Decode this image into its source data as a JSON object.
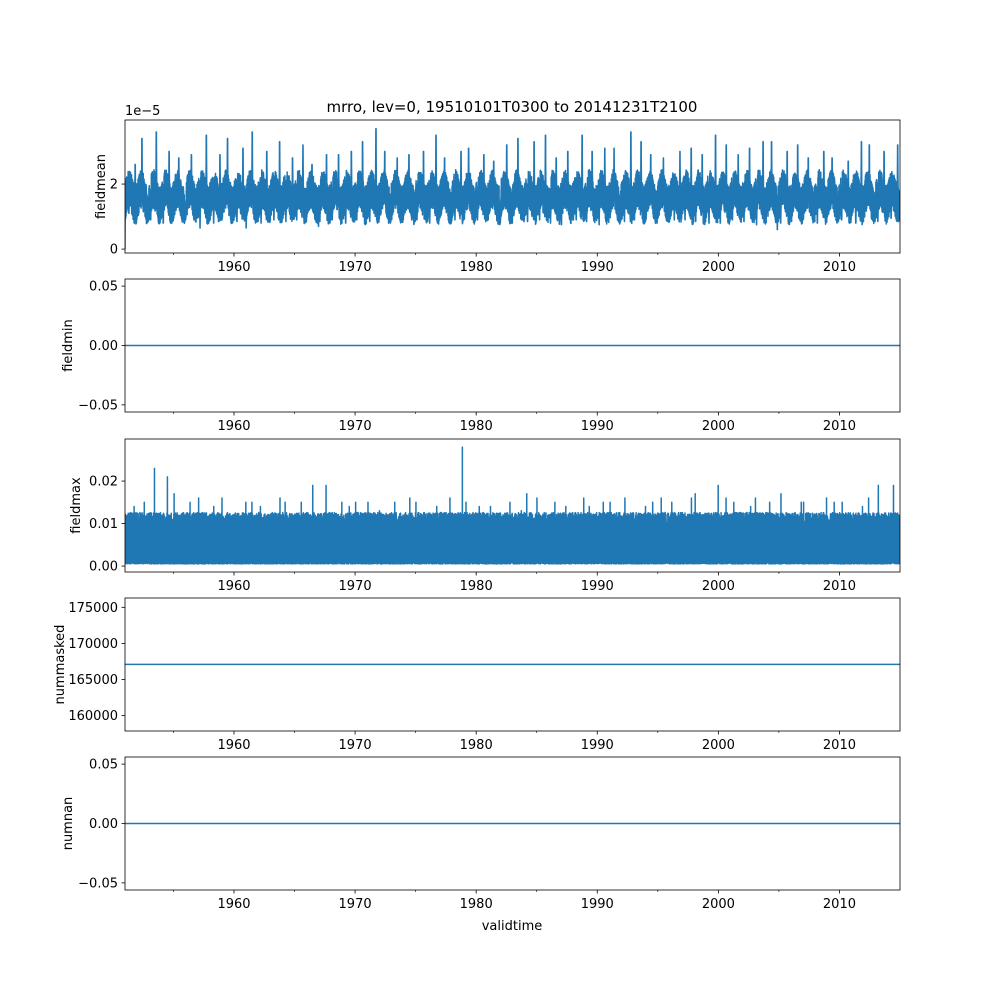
{
  "chart_data": {
    "type": "line",
    "title": "mrro, lev=0, 19510101T0300 to 20141231T2100",
    "xlabel": "validtime",
    "xlim": [
      1951,
      2015
    ],
    "xticks": [
      1960,
      1970,
      1980,
      1990,
      2000,
      2010
    ],
    "xtick_labels": [
      "1960",
      "1970",
      "1980",
      "1990",
      "2000",
      "2010"
    ],
    "minor_xticks": [
      1955,
      1965,
      1975,
      1985,
      1995,
      2005
    ],
    "line_color": "#1f77b4",
    "subplots": [
      {
        "ylabel": "fieldmean",
        "offset_text": "1e−5",
        "scale": 1e-05,
        "ylim": [
          -0.12,
          3.97
        ],
        "yticks": [
          0,
          2
        ],
        "ytick_labels": [
          "0",
          "2"
        ],
        "kind": "seasonal",
        "start_value": 0.0,
        "base": 1.6,
        "years": [
          1951,
          1952,
          1953,
          1954,
          1955,
          1956,
          1957,
          1958,
          1959,
          1960,
          1961,
          1962,
          1963,
          1964,
          1965,
          1966,
          1967,
          1968,
          1969,
          1970,
          1971,
          1972,
          1973,
          1974,
          1975,
          1976,
          1977,
          1978,
          1979,
          1980,
          1981,
          1982,
          1983,
          1984,
          1985,
          1986,
          1987,
          1988,
          1989,
          1990,
          1991,
          1992,
          1993,
          1994,
          1995,
          1996,
          1997,
          1998,
          1999,
          2000,
          2001,
          2002,
          2003,
          2004,
          2005,
          2006,
          2007,
          2008,
          2009,
          2010,
          2011,
          2012,
          2013,
          2014
        ],
        "annual_peak": [
          2.6,
          3.4,
          3.6,
          3.0,
          2.8,
          2.9,
          3.5,
          2.9,
          3.4,
          3.1,
          3.6,
          3.0,
          3.3,
          2.8,
          3.2,
          2.6,
          2.9,
          2.9,
          3.0,
          3.3,
          3.7,
          3.0,
          2.8,
          2.9,
          3.0,
          3.5,
          2.8,
          3.0,
          3.1,
          2.9,
          2.7,
          3.2,
          3.4,
          3.3,
          3.5,
          2.8,
          3.0,
          3.5,
          3.0,
          3.1,
          3.1,
          3.6,
          3.3,
          2.9,
          2.8,
          3.0,
          3.1,
          2.9,
          3.5,
          3.2,
          2.9,
          3.1,
          3.3,
          3.3,
          3.0,
          3.2,
          2.8,
          3.0,
          2.8,
          2.7,
          3.3,
          3.2,
          3.0,
          3.2
        ],
        "annual_trough": [
          1.1,
          1.0,
          0.9,
          0.8,
          0.9,
          0.9,
          0.65,
          0.8,
          0.9,
          0.85,
          0.65,
          0.8,
          0.9,
          0.85,
          0.9,
          0.7,
          0.85,
          0.9,
          0.8,
          0.9,
          0.85,
          0.8,
          0.9,
          0.85,
          0.9,
          0.8,
          0.8,
          0.9,
          0.85,
          0.9,
          0.75,
          0.8,
          0.9,
          0.85,
          0.9,
          0.8,
          0.75,
          0.9,
          0.85,
          0.75,
          0.8,
          0.85,
          0.9,
          0.8,
          0.85,
          0.9,
          0.9,
          0.85,
          0.8,
          0.8,
          0.9,
          0.85,
          0.75,
          0.6,
          0.8,
          0.85,
          0.9,
          0.8,
          0.9,
          0.9,
          0.8,
          0.85,
          0.85,
          0.95
        ]
      },
      {
        "ylabel": "fieldmin",
        "ylim": [
          -0.056,
          0.056
        ],
        "yticks": [
          -0.05,
          0.0,
          0.05
        ],
        "ytick_labels": [
          "−0.05",
          "0.00",
          "0.05"
        ],
        "kind": "constant",
        "value": 0.0
      },
      {
        "ylabel": "fieldmax",
        "ylim": [
          -0.0014,
          0.0299
        ],
        "yticks": [
          0.0,
          0.01,
          0.02
        ],
        "ytick_labels": [
          "0.00",
          "0.01",
          "0.02"
        ],
        "kind": "spiky",
        "floor": 0.0005,
        "typical_max": 0.012,
        "annual_peak": [
          0.014,
          0.015,
          0.023,
          0.021,
          0.017,
          0.015,
          0.016,
          0.014,
          0.016,
          0.015,
          0.015,
          0.014,
          0.016,
          0.015,
          0.015,
          0.019,
          0.019,
          0.015,
          0.014,
          0.015,
          0.015,
          0.013,
          0.015,
          0.016,
          0.015,
          0.014,
          0.016,
          0.028,
          0.015,
          0.014,
          0.014,
          0.015,
          0.013,
          0.017,
          0.016,
          0.015,
          0.014,
          0.016,
          0.014,
          0.015,
          0.015,
          0.016,
          0.014,
          0.015,
          0.016,
          0.015,
          0.016,
          0.017,
          0.019,
          0.016,
          0.015,
          0.014,
          0.016,
          0.015,
          0.017,
          0.015,
          0.015,
          0.016,
          0.015,
          0.015,
          0.014,
          0.016,
          0.019,
          0.019
        ]
      },
      {
        "ylabel": "nummasked",
        "ylim": [
          157875,
          176290
        ],
        "yticks": [
          160000,
          165000,
          170000,
          175000
        ],
        "ytick_labels": [
          "160000",
          "165000",
          "170000",
          "175000"
        ],
        "kind": "constant",
        "value": 167100
      },
      {
        "ylabel": "numnan",
        "ylim": [
          -0.056,
          0.056
        ],
        "yticks": [
          -0.05,
          0.0,
          0.05
        ],
        "ytick_labels": [
          "−0.05",
          "0.00",
          "0.05"
        ],
        "kind": "constant",
        "value": 0.0
      }
    ]
  }
}
